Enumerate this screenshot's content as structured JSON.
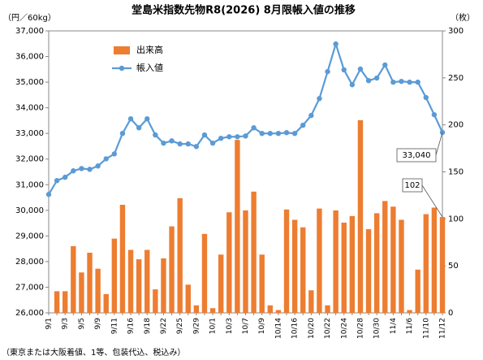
{
  "chart_data": {
    "type": "combo",
    "title": "堂島米指数先物R8(2026) 8月限帳入値の推移",
    "ylabel": "（円／60kg）",
    "y2label": "（枚）",
    "footnote": "（東京または大阪着値、1等、包装代込、税込み）",
    "legend": "upper left",
    "grid": false,
    "categories": [
      "9/1",
      null,
      "9/3",
      null,
      "9/5",
      null,
      "9/9",
      null,
      "9/11",
      null,
      "9/16",
      null,
      "9/18",
      null,
      "9/22",
      null,
      "9/25",
      null,
      "9/29",
      null,
      "10/1",
      null,
      "10/3",
      null,
      "10/7",
      null,
      "10/9",
      null,
      "10/14",
      null,
      "10/16",
      null,
      "10/20",
      null,
      "10/22",
      null,
      "10/24",
      null,
      "10/28",
      null,
      "10/30",
      null,
      "11/4",
      null,
      "11/6",
      null,
      "11/10",
      null,
      "11/12"
    ],
    "ylim": [
      26000,
      37000
    ],
    "yticks": [
      {
        "value": 26000,
        "label": "26,000"
      },
      {
        "value": 27000,
        "label": "27,000"
      },
      {
        "value": 28000,
        "label": "28,000"
      },
      {
        "value": 29000,
        "label": "29,000"
      },
      {
        "value": 30000,
        "label": "30,000"
      },
      {
        "value": 31000,
        "label": "31,000"
      },
      {
        "value": 32000,
        "label": "32,000"
      },
      {
        "value": 33000,
        "label": "33,000"
      },
      {
        "value": 34000,
        "label": "34,000"
      },
      {
        "value": 35000,
        "label": "35,000"
      },
      {
        "value": 36000,
        "label": "36,000"
      },
      {
        "value": 37000,
        "label": "37,000"
      }
    ],
    "y2lim": [
      0,
      300
    ],
    "y2ticks": [
      0,
      50,
      100,
      150,
      200,
      250,
      300
    ],
    "series": [
      {
        "name": "出来高",
        "type": "bar",
        "axis": "y2",
        "color": "#ED7D31",
        "values": [
          0,
          23,
          23,
          71,
          43,
          64,
          47,
          20,
          79,
          115,
          67,
          57,
          67,
          25,
          58,
          92,
          122,
          30,
          8,
          84,
          5,
          62,
          107,
          184,
          109,
          129,
          62,
          8,
          3,
          110,
          99,
          91,
          24,
          111,
          8,
          109,
          96,
          103,
          205,
          89,
          106,
          119,
          113,
          99,
          3,
          46,
          105,
          112,
          102
        ]
      },
      {
        "name": "帳入値",
        "type": "line",
        "axis": "y",
        "color": "#5B9BD5",
        "values": [
          30620,
          31160,
          31290,
          31540,
          31630,
          31600,
          31730,
          32010,
          32200,
          33000,
          33570,
          33220,
          33570,
          32940,
          32620,
          32710,
          32590,
          32590,
          32490,
          32940,
          32620,
          32810,
          32870,
          32870,
          32900,
          33220,
          33000,
          33000,
          33000,
          33030,
          33000,
          33320,
          33700,
          34360,
          35410,
          36490,
          35480,
          34900,
          35510,
          35060,
          35160,
          35670,
          35000,
          35030,
          35000,
          35000,
          34400,
          33730,
          33040
        ],
        "value_labels": [
          null,
          null,
          null,
          null,
          null,
          null,
          null,
          null,
          null,
          null,
          null,
          null,
          null,
          null,
          null,
          null,
          null,
          null,
          null,
          null,
          null,
          null,
          null,
          null,
          null,
          null,
          null,
          null,
          null,
          null,
          null,
          null,
          null,
          null,
          null,
          null,
          null,
          null,
          null,
          null,
          null,
          null,
          null,
          null,
          null,
          null,
          null,
          null,
          "33,040"
        ]
      }
    ]
  }
}
